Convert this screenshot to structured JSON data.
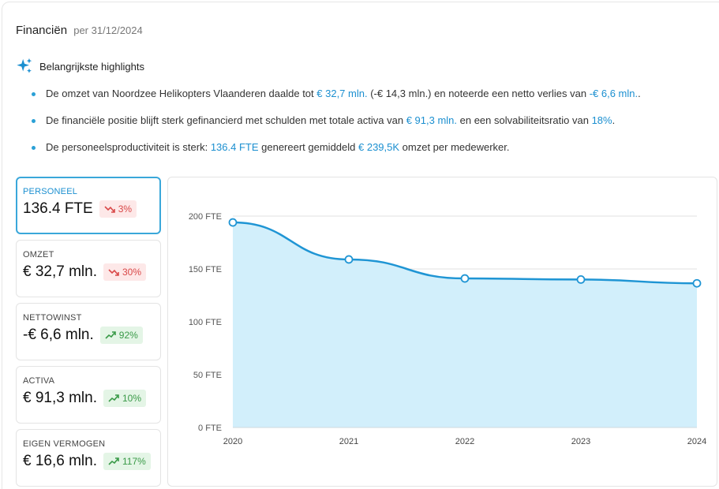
{
  "header": {
    "title": "Financiën",
    "subtitle": "per 31/12/2024"
  },
  "highlights": {
    "title": "Belangrijkste highlights",
    "icon": "sparkles-icon",
    "items": [
      {
        "parts": [
          {
            "text": "De omzet van Noordzee Helikopters Vlaanderen daalde tot ",
            "hl": false
          },
          {
            "text": "€ 32,7 mln.",
            "hl": true
          },
          {
            "text": " (-€ 14,3 mln.) en noteerde een netto verlies van ",
            "hl": false
          },
          {
            "text": "-€ 6,6 mln.",
            "hl": true
          },
          {
            "text": ".",
            "hl": false
          }
        ]
      },
      {
        "parts": [
          {
            "text": "De financiële positie blijft sterk gefinancierd met schulden met totale activa van ",
            "hl": false
          },
          {
            "text": "€ 91,3 mln.",
            "hl": true
          },
          {
            "text": " en een solvabiliteitsratio van ",
            "hl": false
          },
          {
            "text": "18%",
            "hl": true
          },
          {
            "text": ".",
            "hl": false
          }
        ]
      },
      {
        "parts": [
          {
            "text": "De personeelsproductiviteit is sterk: ",
            "hl": false
          },
          {
            "text": "136.4 FTE",
            "hl": true
          },
          {
            "text": " genereert gemiddeld ",
            "hl": false
          },
          {
            "text": "€ 239,5K",
            "hl": true
          },
          {
            "text": " omzet per medewerker.",
            "hl": false
          }
        ]
      }
    ]
  },
  "kpis": [
    {
      "label": "PERSONEEL",
      "value": "136.4 FTE",
      "change": "3%",
      "trend": "down",
      "active": true
    },
    {
      "label": "OMZET",
      "value": "€ 32,7 mln.",
      "change": "30%",
      "trend": "down",
      "active": false
    },
    {
      "label": "NETTOWINST",
      "value": "-€ 6,6 mln.",
      "change": "92%",
      "trend": "up",
      "active": false
    },
    {
      "label": "ACTIVA",
      "value": "€ 91,3 mln.",
      "change": "10%",
      "trend": "up",
      "active": false
    },
    {
      "label": "EIGEN VERMOGEN",
      "value": "€ 16,6 mln.",
      "change": "117%",
      "trend": "up",
      "active": false
    }
  ],
  "colors": {
    "accent": "#1b8fd0",
    "line": "#1f95d4",
    "area": "#d2effb",
    "down": "#d94848",
    "up": "#3a9a48"
  },
  "chart_data": {
    "type": "area",
    "x": [
      "2020",
      "2021",
      "2022",
      "2023",
      "2024"
    ],
    "series": [
      {
        "values": [
          194,
          159,
          141,
          140,
          136.4
        ]
      }
    ],
    "ylim": [
      0,
      200
    ],
    "yticks": [
      0,
      50,
      100,
      150,
      200
    ],
    "ytick_labels": [
      "0 FTE",
      "50 FTE",
      "100 FTE",
      "150 FTE",
      "200 FTE"
    ],
    "grid": true
  }
}
